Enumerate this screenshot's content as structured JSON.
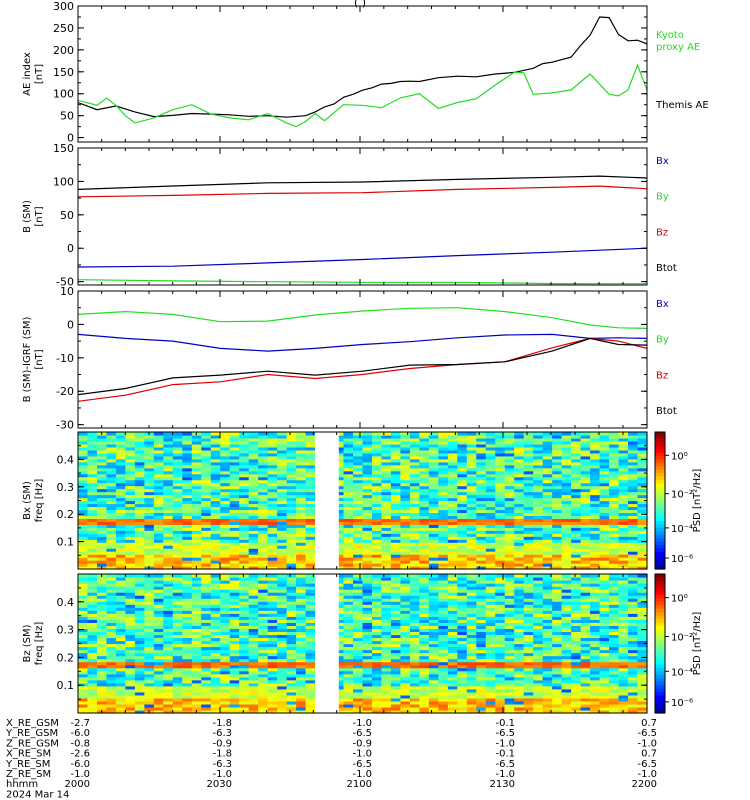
{
  "title": "(                                  )",
  "x_axis": {
    "ticks": [
      "2000",
      "2030",
      "2100",
      "2130",
      "2200"
    ],
    "label_hhmm": "hhmm",
    "date": "2024 Mar 14"
  },
  "orbit_rows": [
    {
      "label": "X_RE_GSM",
      "values": [
        "-2.7",
        "-1.8",
        "-1.0",
        "-0.1",
        "0.7"
      ]
    },
    {
      "label": "Y_RE_GSM",
      "values": [
        "-6.0",
        "-6.3",
        "-6.5",
        "-6.5",
        "-6.5"
      ]
    },
    {
      "label": "Z_RE_GSM",
      "values": [
        "-0.8",
        "-0.9",
        "-0.9",
        "-1.0",
        "-1.0"
      ]
    },
    {
      "label": "X_RE_SM",
      "values": [
        "-2.6",
        "-1.8",
        "-1.0",
        "-0.1",
        "0.7"
      ]
    },
    {
      "label": "Y_RE_SM",
      "values": [
        "-6.0",
        "-6.3",
        "-6.5",
        "-6.5",
        "-6.5"
      ]
    },
    {
      "label": "Z_RE_SM",
      "values": [
        "-1.0",
        "-1.0",
        "-1.0",
        "-1.0",
        "-1.0"
      ]
    }
  ],
  "colors": {
    "black": "#000000",
    "red": "#dd0000",
    "green": "#22dd22",
    "blue": "#0000bb",
    "kyoto": "#22dd22"
  },
  "chart_data": [
    {
      "type": "line",
      "ylabel_lines": [
        "AE index",
        "[nT]"
      ],
      "ylim": [
        -10,
        300
      ],
      "yticks": [
        0,
        50,
        100,
        150,
        200,
        250,
        300
      ],
      "xlim": [
        0,
        120
      ],
      "legend_entries": [
        {
          "lines": [
            "Kyoto",
            "proxy AE"
          ],
          "color": "#22dd22"
        },
        {
          "lines": [
            "Themis AE"
          ],
          "color": "#000000"
        }
      ],
      "series": [
        {
          "name": "Themis AE",
          "color": "#000000",
          "x": [
            0,
            4,
            8,
            12,
            16,
            20,
            24,
            28,
            32,
            36,
            40,
            44,
            48,
            50,
            52,
            54,
            56,
            58,
            60,
            62,
            64,
            66,
            68,
            70,
            72,
            76,
            80,
            84,
            88,
            92,
            96,
            98,
            100,
            104,
            106,
            108,
            110,
            112,
            114,
            116,
            118,
            120
          ],
          "y": [
            80,
            65,
            72,
            60,
            48,
            52,
            55,
            55,
            52,
            50,
            50,
            48,
            50,
            60,
            70,
            78,
            92,
            100,
            108,
            115,
            122,
            125,
            128,
            130,
            128,
            138,
            140,
            140,
            145,
            150,
            158,
            170,
            172,
            185,
            210,
            235,
            275,
            275,
            235,
            222,
            222,
            215
          ]
        },
        {
          "name": "Kyoto proxy AE",
          "color": "#22dd22",
          "x": [
            0,
            4,
            6,
            8,
            10,
            12,
            16,
            20,
            24,
            28,
            32,
            36,
            40,
            44,
            46,
            48,
            50,
            52,
            56,
            60,
            64,
            68,
            72,
            76,
            80,
            84,
            88,
            92,
            94,
            96,
            100,
            104,
            108,
            112,
            114,
            116,
            118,
            120
          ],
          "y": [
            85,
            75,
            90,
            75,
            50,
            35,
            45,
            65,
            75,
            55,
            45,
            42,
            55,
            35,
            25,
            38,
            55,
            40,
            75,
            75,
            68,
            92,
            100,
            68,
            80,
            90,
            120,
            150,
            148,
            100,
            102,
            110,
            145,
            100,
            95,
            110,
            165,
            110
          ]
        }
      ]
    },
    {
      "type": "line",
      "ylabel_lines": [
        "B (SM)",
        "[nT]"
      ],
      "ylim": [
        -55,
        150
      ],
      "yticks": [
        -50,
        0,
        50,
        100,
        150
      ],
      "xlim": [
        0,
        120
      ],
      "legend_entries": [
        {
          "lines": [
            "Bx"
          ],
          "color": "#0000bb"
        },
        {
          "lines": [
            "By"
          ],
          "color": "#22dd22"
        },
        {
          "lines": [
            "Bz"
          ],
          "color": "#dd0000"
        },
        {
          "lines": [
            "Btot"
          ],
          "color": "#000000"
        }
      ],
      "series": [
        {
          "name": "Btot",
          "color": "#000000",
          "x": [
            0,
            20,
            40,
            60,
            80,
            100,
            110,
            120
          ],
          "y": [
            88,
            94,
            98,
            100,
            103,
            107,
            108,
            106
          ]
        },
        {
          "name": "Bz",
          "color": "#dd0000",
          "x": [
            0,
            20,
            40,
            60,
            80,
            100,
            110,
            120
          ],
          "y": [
            77,
            80,
            82,
            84,
            88,
            92,
            93,
            90
          ]
        },
        {
          "name": "Bx",
          "color": "#0000bb",
          "x": [
            0,
            20,
            40,
            60,
            80,
            100,
            120
          ],
          "y": [
            -28,
            -26,
            -22,
            -16,
            -11,
            -5,
            0
          ]
        },
        {
          "name": "By",
          "color": "#22dd22",
          "x": [
            0,
            20,
            40,
            60,
            80,
            100,
            120
          ],
          "y": [
            -47,
            -48,
            -50,
            -50,
            -51,
            -52,
            -53
          ]
        }
      ]
    },
    {
      "type": "line",
      "ylabel_lines": [
        "B (SM)-IGRF (SM)",
        "[nT]"
      ],
      "ylim": [
        -31,
        10
      ],
      "yticks": [
        -30,
        -20,
        -10,
        0,
        10
      ],
      "xlim": [
        0,
        120
      ],
      "legend_entries": [
        {
          "lines": [
            "Bx"
          ],
          "color": "#0000bb"
        },
        {
          "lines": [
            "By"
          ],
          "color": "#22dd22"
        },
        {
          "lines": [
            "Bz"
          ],
          "color": "#dd0000"
        },
        {
          "lines": [
            "Btot"
          ],
          "color": "#000000"
        }
      ],
      "series": [
        {
          "name": "By",
          "color": "#22dd22",
          "x": [
            0,
            10,
            20,
            30,
            40,
            50,
            60,
            70,
            80,
            90,
            100,
            108,
            114,
            120
          ],
          "y": [
            3,
            4,
            3,
            1,
            1,
            3,
            4,
            5,
            5,
            4,
            2,
            0,
            -1,
            -1
          ]
        },
        {
          "name": "Bx",
          "color": "#0000bb",
          "x": [
            0,
            10,
            20,
            30,
            40,
            50,
            60,
            70,
            80,
            90,
            100,
            108,
            114,
            120
          ],
          "y": [
            -3,
            -4,
            -5,
            -7,
            -8,
            -7,
            -6,
            -5,
            -4,
            -3,
            -3,
            -4,
            -4,
            -4
          ]
        },
        {
          "name": "Bz",
          "color": "#dd0000",
          "x": [
            0,
            10,
            20,
            30,
            40,
            50,
            60,
            70,
            80,
            90,
            100,
            108,
            114,
            120
          ],
          "y": [
            -23,
            -21,
            -18,
            -17,
            -15,
            -16,
            -15,
            -13,
            -12,
            -11,
            -7,
            -4,
            -5,
            -7
          ]
        },
        {
          "name": "Btot",
          "color": "#000000",
          "x": [
            0,
            10,
            20,
            30,
            40,
            50,
            60,
            70,
            80,
            90,
            100,
            108,
            114,
            120
          ],
          "y": [
            -21,
            -19,
            -16,
            -15,
            -14,
            -15,
            -14,
            -12,
            -12,
            -11,
            -8,
            -4,
            -6,
            -6
          ]
        }
      ]
    },
    {
      "type": "heatmap",
      "ylabel_lines": [
        "Bx (SM)",
        "freq [Hz]"
      ],
      "ylim": [
        0,
        0.5
      ],
      "yticks": [
        0.1,
        0.2,
        0.3,
        0.4
      ],
      "xlim": [
        0,
        120
      ],
      "gap": [
        50,
        55
      ],
      "colorbar_label": "PSD [nT²/Hz]",
      "colorbar_ticks": [
        "10⁰",
        "10⁻²",
        "10⁻⁴",
        "10⁻⁶"
      ]
    },
    {
      "type": "heatmap",
      "ylabel_lines": [
        "Bz (SM)",
        "freq [Hz]"
      ],
      "ylim": [
        0,
        0.5
      ],
      "yticks": [
        0.1,
        0.2,
        0.3,
        0.4
      ],
      "xlim": [
        0,
        120
      ],
      "gap": [
        50,
        55
      ],
      "colorbar_label": "PSD [nT²/Hz]",
      "colorbar_ticks": [
        "10⁰",
        "10⁻²",
        "10⁻⁴",
        "10⁻⁶"
      ]
    }
  ]
}
